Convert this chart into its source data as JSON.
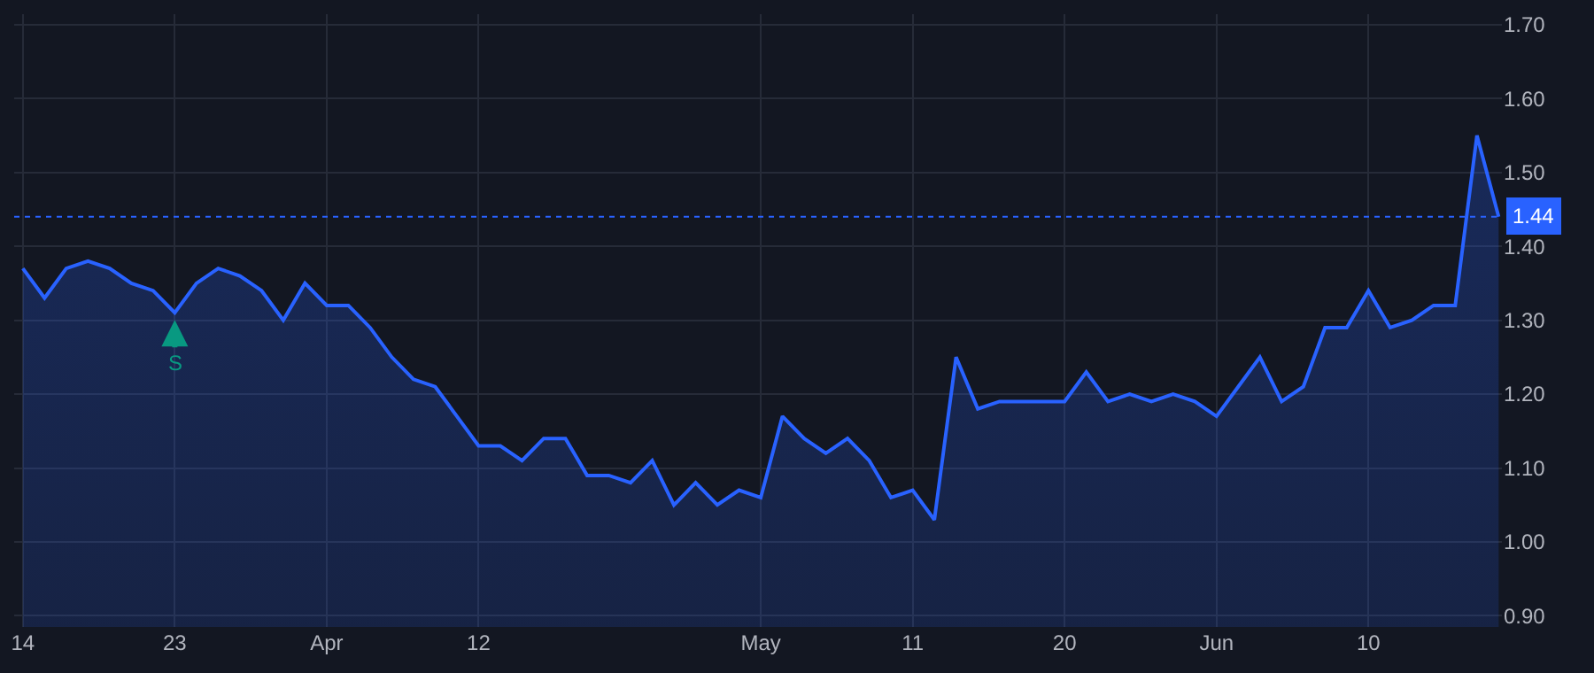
{
  "chart_data": {
    "type": "area",
    "categories": [
      "14",
      null,
      null,
      null,
      null,
      null,
      null,
      "23",
      null,
      null,
      null,
      null,
      null,
      null,
      "Apr",
      null,
      null,
      null,
      null,
      null,
      null,
      "12",
      null,
      null,
      null,
      null,
      null,
      null,
      null,
      null,
      null,
      null,
      null,
      null,
      "May",
      null,
      null,
      null,
      null,
      null,
      null,
      "11",
      null,
      null,
      null,
      null,
      null,
      null,
      "20",
      null,
      null,
      null,
      null,
      null,
      null,
      "Jun",
      null,
      null,
      null,
      null,
      null,
      null,
      "10",
      null,
      null,
      null,
      null,
      null,
      null
    ],
    "series": [
      {
        "color": "#2962ff",
        "values": [
          1.37,
          1.33,
          1.37,
          1.38,
          1.37,
          1.35,
          1.34,
          1.31,
          1.35,
          1.37,
          1.36,
          1.34,
          1.3,
          1.35,
          1.32,
          1.32,
          1.29,
          1.25,
          1.22,
          1.21,
          1.17,
          1.13,
          1.13,
          1.11,
          1.14,
          1.14,
          1.09,
          1.09,
          1.08,
          1.11,
          1.05,
          1.08,
          1.05,
          1.07,
          1.06,
          1.17,
          1.14,
          1.12,
          1.14,
          1.11,
          1.06,
          1.07,
          1.03,
          1.25,
          1.18,
          1.19,
          1.19,
          1.19,
          1.19,
          1.23,
          1.19,
          1.2,
          1.19,
          1.2,
          1.19,
          1.17,
          1.21,
          1.25,
          1.19,
          1.21,
          1.29,
          1.29,
          1.34,
          1.29,
          1.3,
          1.32,
          1.32,
          1.55,
          1.44
        ]
      }
    ],
    "ylim": [
      0.885,
      1.714
    ],
    "yticks": [
      {
        "value": 0.9,
        "label": "0.90"
      },
      {
        "value": 1.0,
        "label": "1.00"
      },
      {
        "value": 1.1,
        "label": "1.10"
      },
      {
        "value": 1.2,
        "label": "1.20"
      },
      {
        "value": 1.3,
        "label": "1.30"
      },
      {
        "value": 1.4,
        "label": "1.40"
      },
      {
        "value": 1.5,
        "label": "1.50"
      },
      {
        "value": 1.6,
        "label": "1.60"
      },
      {
        "value": 1.7,
        "label": "1.70"
      }
    ],
    "ref_lines": [
      {
        "axis": "y",
        "value": 1.44,
        "label": "1.44",
        "color": "#2962ff",
        "line_style": "dotted"
      }
    ],
    "annotations": [
      {
        "text": "S",
        "x": "23",
        "y": 1.31
      }
    ],
    "grid": true,
    "marker": "none",
    "line_style": "solid"
  }
}
